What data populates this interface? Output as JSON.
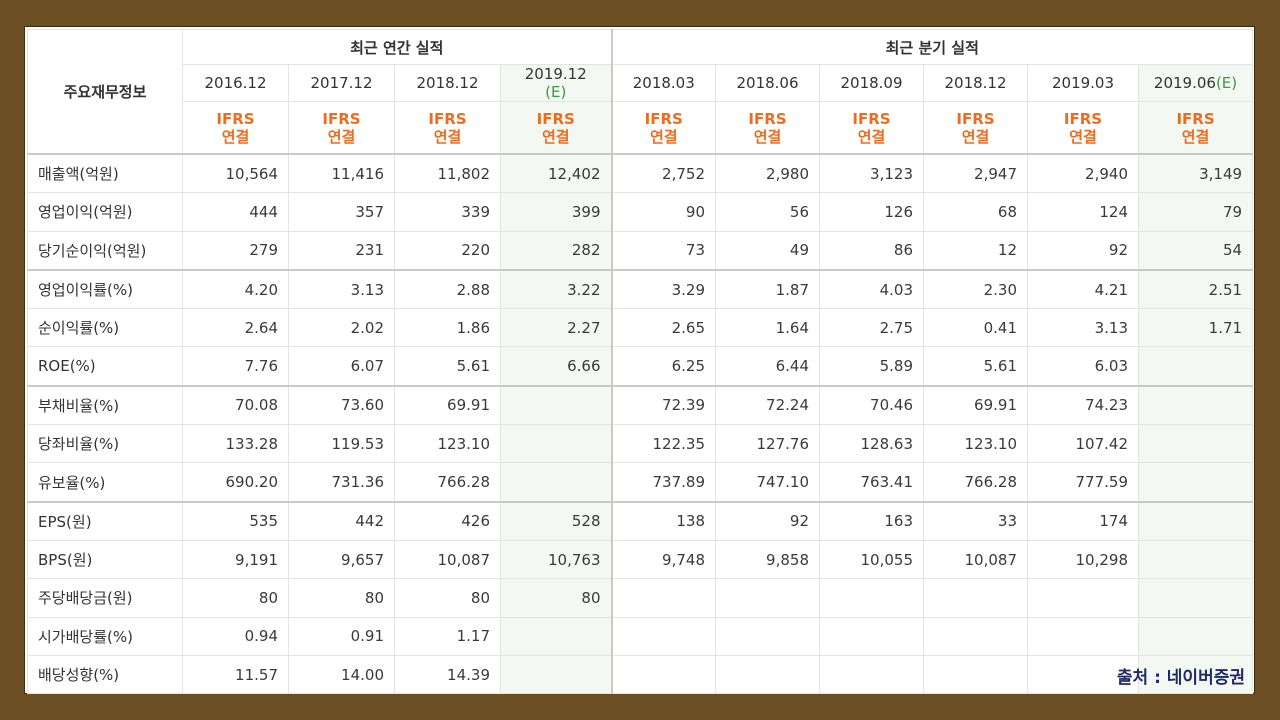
{
  "table": {
    "corner_label": "주요재무정보",
    "group_annual": "최근 연간 실적",
    "group_quarter": "최근 분기 실적",
    "periods": [
      {
        "label": "2016.12",
        "est": ""
      },
      {
        "label": "2017.12",
        "est": ""
      },
      {
        "label": "2018.12",
        "est": ""
      },
      {
        "label": "2019.12",
        "est": "(E)"
      },
      {
        "label": "2018.03",
        "est": ""
      },
      {
        "label": "2018.06",
        "est": ""
      },
      {
        "label": "2018.09",
        "est": ""
      },
      {
        "label": "2018.12",
        "est": ""
      },
      {
        "label": "2019.03",
        "est": ""
      },
      {
        "label": "2019.06",
        "est": "(E)"
      }
    ],
    "ifrs_line1": "IFRS",
    "ifrs_line2": "연결",
    "rows": [
      {
        "label": "매출액(억원)",
        "values": [
          "10,564",
          "11,416",
          "11,802",
          "12,402",
          "2,752",
          "2,980",
          "3,123",
          "2,947",
          "2,940",
          "3,149"
        ]
      },
      {
        "label": "영업이익(억원)",
        "values": [
          "444",
          "357",
          "339",
          "399",
          "90",
          "56",
          "126",
          "68",
          "124",
          "79"
        ]
      },
      {
        "label": "당기순이익(억원)",
        "values": [
          "279",
          "231",
          "220",
          "282",
          "73",
          "49",
          "86",
          "12",
          "92",
          "54"
        ]
      },
      {
        "label": "영업이익률(%)",
        "values": [
          "4.20",
          "3.13",
          "2.88",
          "3.22",
          "3.29",
          "1.87",
          "4.03",
          "2.30",
          "4.21",
          "2.51"
        ]
      },
      {
        "label": "순이익률(%)",
        "values": [
          "2.64",
          "2.02",
          "1.86",
          "2.27",
          "2.65",
          "1.64",
          "2.75",
          "0.41",
          "3.13",
          "1.71"
        ]
      },
      {
        "label": "ROE(%)",
        "values": [
          "7.76",
          "6.07",
          "5.61",
          "6.66",
          "6.25",
          "6.44",
          "5.89",
          "5.61",
          "6.03",
          ""
        ]
      },
      {
        "label": "부채비율(%)",
        "values": [
          "70.08",
          "73.60",
          "69.91",
          "",
          "72.39",
          "72.24",
          "70.46",
          "69.91",
          "74.23",
          ""
        ]
      },
      {
        "label": "당좌비율(%)",
        "values": [
          "133.28",
          "119.53",
          "123.10",
          "",
          "122.35",
          "127.76",
          "128.63",
          "123.10",
          "107.42",
          ""
        ]
      },
      {
        "label": "유보율(%)",
        "values": [
          "690.20",
          "731.36",
          "766.28",
          "",
          "737.89",
          "747.10",
          "763.41",
          "766.28",
          "777.59",
          ""
        ]
      },
      {
        "label": "EPS(원)",
        "values": [
          "535",
          "442",
          "426",
          "528",
          "138",
          "92",
          "163",
          "33",
          "174",
          ""
        ]
      },
      {
        "label": "BPS(원)",
        "values": [
          "9,191",
          "9,657",
          "10,087",
          "10,763",
          "9,748",
          "9,858",
          "10,055",
          "10,087",
          "10,298",
          ""
        ]
      },
      {
        "label": "주당배당금(원)",
        "values": [
          "80",
          "80",
          "80",
          "80",
          "",
          "",
          "",
          "",
          "",
          ""
        ]
      },
      {
        "label": "시가배당률(%)",
        "values": [
          "0.94",
          "0.91",
          "1.17",
          "",
          "",
          "",
          "",
          "",
          "",
          ""
        ]
      },
      {
        "label": "배당성향(%)",
        "values": [
          "11.57",
          "14.00",
          "14.39",
          "",
          "",
          "",
          "",
          "",
          "",
          ""
        ]
      }
    ]
  },
  "source_label": "출처 : 네이버증권"
}
